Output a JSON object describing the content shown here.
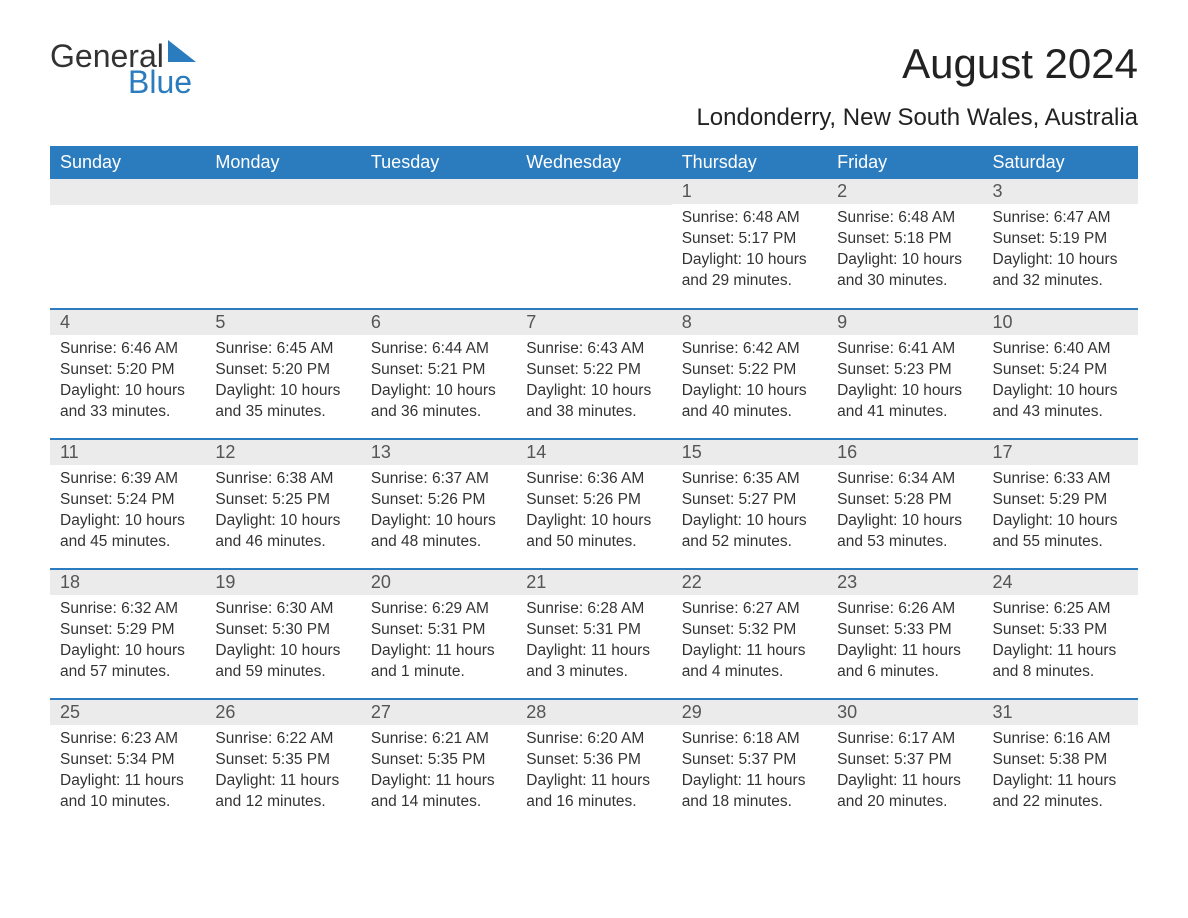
{
  "logo": {
    "word1": "General",
    "word2": "Blue",
    "word1_color": "#4a4a4a",
    "word2_color": "#2b7bbf",
    "triangle_color": "#2b7bbf"
  },
  "title": "August 2024",
  "subtitle": "Londonderry, New South Wales, Australia",
  "colors": {
    "header_bg": "#2b7bbf",
    "header_text": "#ffffff",
    "daynum_bg": "#ebebeb",
    "daynum_text": "#555555",
    "body_text": "#333333",
    "row_divider": "#2b7bbf",
    "background": "#ffffff"
  },
  "fontsize": {
    "title": 42,
    "subtitle": 24,
    "dayheader": 18,
    "daynum": 18,
    "body": 15.5
  },
  "day_headers": [
    "Sunday",
    "Monday",
    "Tuesday",
    "Wednesday",
    "Thursday",
    "Friday",
    "Saturday"
  ],
  "weeks": [
    [
      null,
      null,
      null,
      null,
      {
        "n": "1",
        "sunrise": "Sunrise: 6:48 AM",
        "sunset": "Sunset: 5:17 PM",
        "daylight": "Daylight: 10 hours and 29 minutes."
      },
      {
        "n": "2",
        "sunrise": "Sunrise: 6:48 AM",
        "sunset": "Sunset: 5:18 PM",
        "daylight": "Daylight: 10 hours and 30 minutes."
      },
      {
        "n": "3",
        "sunrise": "Sunrise: 6:47 AM",
        "sunset": "Sunset: 5:19 PM",
        "daylight": "Daylight: 10 hours and 32 minutes."
      }
    ],
    [
      {
        "n": "4",
        "sunrise": "Sunrise: 6:46 AM",
        "sunset": "Sunset: 5:20 PM",
        "daylight": "Daylight: 10 hours and 33 minutes."
      },
      {
        "n": "5",
        "sunrise": "Sunrise: 6:45 AM",
        "sunset": "Sunset: 5:20 PM",
        "daylight": "Daylight: 10 hours and 35 minutes."
      },
      {
        "n": "6",
        "sunrise": "Sunrise: 6:44 AM",
        "sunset": "Sunset: 5:21 PM",
        "daylight": "Daylight: 10 hours and 36 minutes."
      },
      {
        "n": "7",
        "sunrise": "Sunrise: 6:43 AM",
        "sunset": "Sunset: 5:22 PM",
        "daylight": "Daylight: 10 hours and 38 minutes."
      },
      {
        "n": "8",
        "sunrise": "Sunrise: 6:42 AM",
        "sunset": "Sunset: 5:22 PM",
        "daylight": "Daylight: 10 hours and 40 minutes."
      },
      {
        "n": "9",
        "sunrise": "Sunrise: 6:41 AM",
        "sunset": "Sunset: 5:23 PM",
        "daylight": "Daylight: 10 hours and 41 minutes."
      },
      {
        "n": "10",
        "sunrise": "Sunrise: 6:40 AM",
        "sunset": "Sunset: 5:24 PM",
        "daylight": "Daylight: 10 hours and 43 minutes."
      }
    ],
    [
      {
        "n": "11",
        "sunrise": "Sunrise: 6:39 AM",
        "sunset": "Sunset: 5:24 PM",
        "daylight": "Daylight: 10 hours and 45 minutes."
      },
      {
        "n": "12",
        "sunrise": "Sunrise: 6:38 AM",
        "sunset": "Sunset: 5:25 PM",
        "daylight": "Daylight: 10 hours and 46 minutes."
      },
      {
        "n": "13",
        "sunrise": "Sunrise: 6:37 AM",
        "sunset": "Sunset: 5:26 PM",
        "daylight": "Daylight: 10 hours and 48 minutes."
      },
      {
        "n": "14",
        "sunrise": "Sunrise: 6:36 AM",
        "sunset": "Sunset: 5:26 PM",
        "daylight": "Daylight: 10 hours and 50 minutes."
      },
      {
        "n": "15",
        "sunrise": "Sunrise: 6:35 AM",
        "sunset": "Sunset: 5:27 PM",
        "daylight": "Daylight: 10 hours and 52 minutes."
      },
      {
        "n": "16",
        "sunrise": "Sunrise: 6:34 AM",
        "sunset": "Sunset: 5:28 PM",
        "daylight": "Daylight: 10 hours and 53 minutes."
      },
      {
        "n": "17",
        "sunrise": "Sunrise: 6:33 AM",
        "sunset": "Sunset: 5:29 PM",
        "daylight": "Daylight: 10 hours and 55 minutes."
      }
    ],
    [
      {
        "n": "18",
        "sunrise": "Sunrise: 6:32 AM",
        "sunset": "Sunset: 5:29 PM",
        "daylight": "Daylight: 10 hours and 57 minutes."
      },
      {
        "n": "19",
        "sunrise": "Sunrise: 6:30 AM",
        "sunset": "Sunset: 5:30 PM",
        "daylight": "Daylight: 10 hours and 59 minutes."
      },
      {
        "n": "20",
        "sunrise": "Sunrise: 6:29 AM",
        "sunset": "Sunset: 5:31 PM",
        "daylight": "Daylight: 11 hours and 1 minute."
      },
      {
        "n": "21",
        "sunrise": "Sunrise: 6:28 AM",
        "sunset": "Sunset: 5:31 PM",
        "daylight": "Daylight: 11 hours and 3 minutes."
      },
      {
        "n": "22",
        "sunrise": "Sunrise: 6:27 AM",
        "sunset": "Sunset: 5:32 PM",
        "daylight": "Daylight: 11 hours and 4 minutes."
      },
      {
        "n": "23",
        "sunrise": "Sunrise: 6:26 AM",
        "sunset": "Sunset: 5:33 PM",
        "daylight": "Daylight: 11 hours and 6 minutes."
      },
      {
        "n": "24",
        "sunrise": "Sunrise: 6:25 AM",
        "sunset": "Sunset: 5:33 PM",
        "daylight": "Daylight: 11 hours and 8 minutes."
      }
    ],
    [
      {
        "n": "25",
        "sunrise": "Sunrise: 6:23 AM",
        "sunset": "Sunset: 5:34 PM",
        "daylight": "Daylight: 11 hours and 10 minutes."
      },
      {
        "n": "26",
        "sunrise": "Sunrise: 6:22 AM",
        "sunset": "Sunset: 5:35 PM",
        "daylight": "Daylight: 11 hours and 12 minutes."
      },
      {
        "n": "27",
        "sunrise": "Sunrise: 6:21 AM",
        "sunset": "Sunset: 5:35 PM",
        "daylight": "Daylight: 11 hours and 14 minutes."
      },
      {
        "n": "28",
        "sunrise": "Sunrise: 6:20 AM",
        "sunset": "Sunset: 5:36 PM",
        "daylight": "Daylight: 11 hours and 16 minutes."
      },
      {
        "n": "29",
        "sunrise": "Sunrise: 6:18 AM",
        "sunset": "Sunset: 5:37 PM",
        "daylight": "Daylight: 11 hours and 18 minutes."
      },
      {
        "n": "30",
        "sunrise": "Sunrise: 6:17 AM",
        "sunset": "Sunset: 5:37 PM",
        "daylight": "Daylight: 11 hours and 20 minutes."
      },
      {
        "n": "31",
        "sunrise": "Sunrise: 6:16 AM",
        "sunset": "Sunset: 5:38 PM",
        "daylight": "Daylight: 11 hours and 22 minutes."
      }
    ]
  ]
}
